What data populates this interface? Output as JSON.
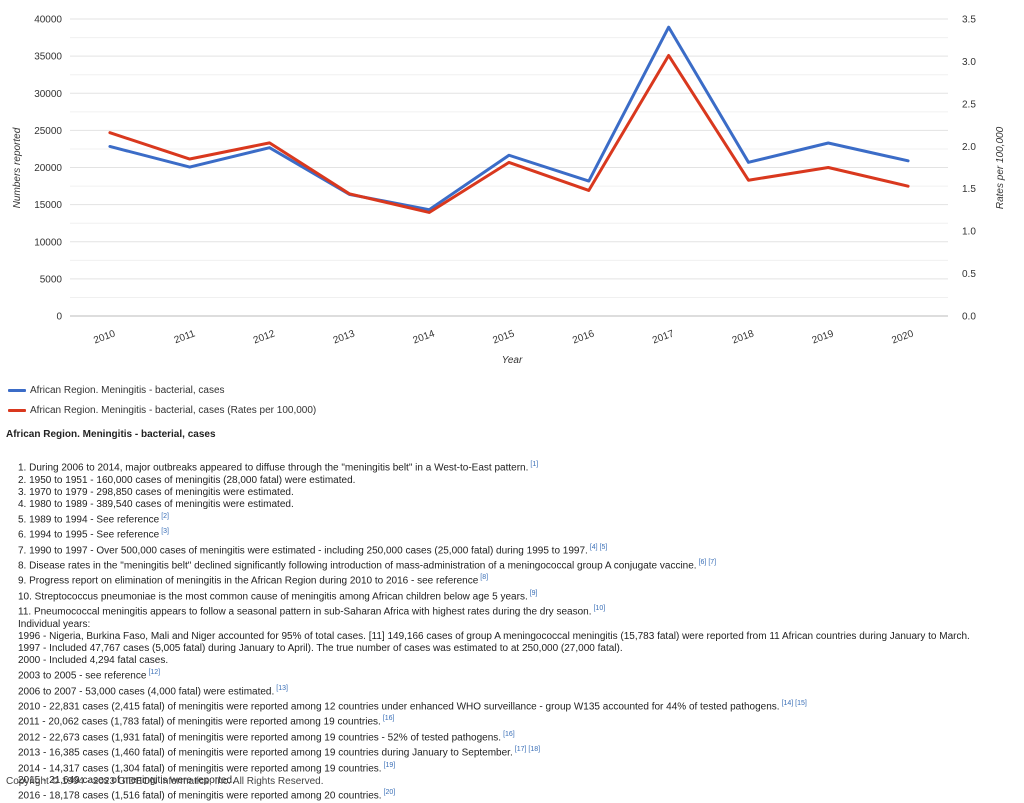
{
  "chart_data": {
    "type": "line",
    "categories": [
      "2010",
      "2011",
      "2012",
      "2013",
      "2014",
      "2015",
      "2016",
      "2017",
      "2018",
      "2019",
      "2020"
    ],
    "xlabel": "Year",
    "ylabel": "Numbers reported",
    "y2label": "Rates per 100,000",
    "ylim": [
      0,
      40000
    ],
    "y2lim": [
      0,
      3.5
    ],
    "yticks": [
      "0",
      "5000",
      "10000",
      "15000",
      "20000",
      "25000",
      "30000",
      "35000",
      "40000"
    ],
    "y2ticks": [
      "0.0",
      "0.5",
      "1.0",
      "1.5",
      "2.0",
      "2.5",
      "3.0",
      "3.5"
    ],
    "grid": true,
    "legend_position": "bottom-left",
    "series": [
      {
        "name": "African Region. Meningitis - bacterial, cases",
        "color": "#3b6cc7",
        "axis": "left",
        "values": [
          22831,
          20062,
          22673,
          16385,
          14317,
          21649,
          18178,
          38900,
          20700,
          23300,
          20900
        ]
      },
      {
        "name": "African Region. Meningitis - bacterial, cases (Rates per 100,000)",
        "color": "#d9381e",
        "axis": "right",
        "values": [
          2.16,
          1.85,
          2.04,
          1.44,
          1.22,
          1.81,
          1.48,
          3.07,
          1.6,
          1.75,
          1.53
        ]
      }
    ]
  },
  "notes": {
    "title": "African Region. Meningitis - bacterial, cases",
    "lines": [
      {
        "text": "1. During 2006 to 2014, major outbreaks appeared to diffuse through the \"meningitis belt\" in a West-to-East pattern.",
        "refs": "[1]"
      },
      {
        "text": "2. 1950 to 1951 - 160,000 cases of meningitis (28,000 fatal) were estimated.",
        "refs": ""
      },
      {
        "text": "3. 1970 to 1979 - 298,850 cases of meningitis were estimated.",
        "refs": ""
      },
      {
        "text": "4. 1980 to 1989 - 389,540 cases of meningitis were estimated.",
        "refs": ""
      },
      {
        "text": "5. 1989 to 1994 - See reference",
        "refs": "[2]"
      },
      {
        "text": "6. 1994 to 1995 - See reference",
        "refs": "[3]"
      },
      {
        "text": "7. 1990 to 1997 - Over 500,000 cases of meningitis were estimated - including 250,000 cases (25,000 fatal) during 1995 to 1997.",
        "refs": "[4] [5]"
      },
      {
        "text": "8. Disease rates in the \"meningitis belt\" declined significantly following introduction of mass-administration of a meningococcal group A conjugate vaccine.",
        "refs": "[6] [7]"
      },
      {
        "text": "9. Progress report on elimination of meningitis in the African Region during 2010 to 2016 - see reference",
        "refs": "[8]"
      },
      {
        "text": "10. Streptococcus pneumoniae is the most common cause of meningitis among African children below age 5 years.",
        "refs": "[9]"
      },
      {
        "text": "11. Pneumococcal meningitis appears to follow a seasonal pattern in sub-Saharan Africa with highest rates during the dry season.",
        "refs": "[10]"
      },
      {
        "text": "Individual years:",
        "refs": ""
      },
      {
        "text": "1996 - Nigeria, Burkina Faso, Mali and Niger accounted for 95% of total cases. [11] 149,166 cases of group A meningococcal meningitis (15,783 fatal) were reported from 11 African countries during January to March.",
        "refs": ""
      },
      {
        "text": "1997 - Included 47,767 cases (5,005 fatal) during January to April). The true number of cases was estimated to at 250,000 (27,000 fatal).",
        "refs": ""
      },
      {
        "text": "2000 - Included 4,294 fatal cases.",
        "refs": ""
      },
      {
        "text": "2003 to 2005 - see reference",
        "refs": "[12]"
      },
      {
        "text": "2006 to 2007 - 53,000 cases (4,000 fatal) were estimated.",
        "refs": "[13]"
      },
      {
        "text": "2010 - 22,831 cases (2,415 fatal) of meningitis were reported among 12 countries under enhanced WHO surveillance - group W135 accounted for 44% of tested pathogens.",
        "refs": "[14] [15]"
      },
      {
        "text": "2011 - 20,062 cases (1,783 fatal) of meningitis were reported among 19 countries.",
        "refs": "[16]"
      },
      {
        "text": "2012 - 22,673 cases (1,931 fatal) of meningitis were reported among 19 countries - 52% of tested pathogens.",
        "refs": "[16]"
      },
      {
        "text": "2013 - 16,385 cases (1,460 fatal) of meningitis were reported among 19 countries during January to September.",
        "refs": "[17] [18]"
      },
      {
        "text": "2014 - 14,317 cases (1,304 fatal) of meningitis were reported among 19 countries.",
        "refs": "[19]"
      },
      {
        "text": "2015 - 21,649 cases of meningitis were reported.",
        "refs": ""
      },
      {
        "text": "2016 - 18,178 cases (1,516 fatal) of meningitis were reported among 20 countries.",
        "refs": "[20]"
      }
    ]
  },
  "footer": {
    "copyright": "Copyright © 1994 - 2023 GIDEON Informatics, Inc. All Rights Reserved."
  }
}
